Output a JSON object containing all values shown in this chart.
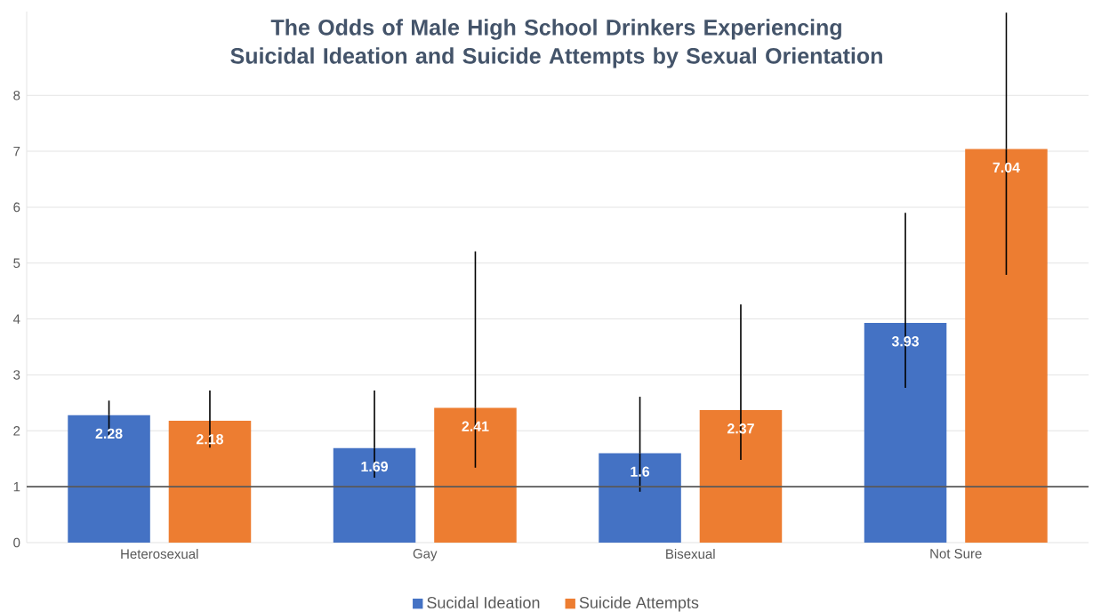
{
  "chart_data": {
    "type": "bar",
    "title": "The Odds of Male High School Drinkers Experiencing Suicidal Ideation and Suicide Attempts by Sexual Orientation",
    "categories": [
      "Heterosexual",
      "Gay",
      "Bisexual",
      "Not Sure"
    ],
    "series": [
      {
        "name": "Sucidal Ideation",
        "color": "#4472c4",
        "values": [
          2.28,
          1.69,
          1.6,
          3.93
        ],
        "errors": [
          [
            1.91,
            2.54
          ],
          [
            1.16,
            2.72
          ],
          [
            0.91,
            2.61
          ],
          [
            2.77,
            5.9
          ]
        ]
      },
      {
        "name": "Suicide Attempts",
        "color": "#ed7d31",
        "values": [
          2.18,
          2.41,
          2.37,
          7.04
        ],
        "errors": [
          [
            1.7,
            2.72
          ],
          [
            1.34,
            5.21
          ],
          [
            1.48,
            4.26
          ],
          [
            4.79,
            9.48
          ]
        ]
      }
    ],
    "ylim": [
      0,
      9.5
    ],
    "yticks": [
      0,
      1,
      2,
      3,
      4,
      5,
      6,
      7,
      8
    ],
    "grid": "y",
    "legend": "bottom",
    "data_labels": true,
    "ref_lines": [
      {
        "axis": "y",
        "value": 1,
        "color": "#595959"
      }
    ]
  }
}
